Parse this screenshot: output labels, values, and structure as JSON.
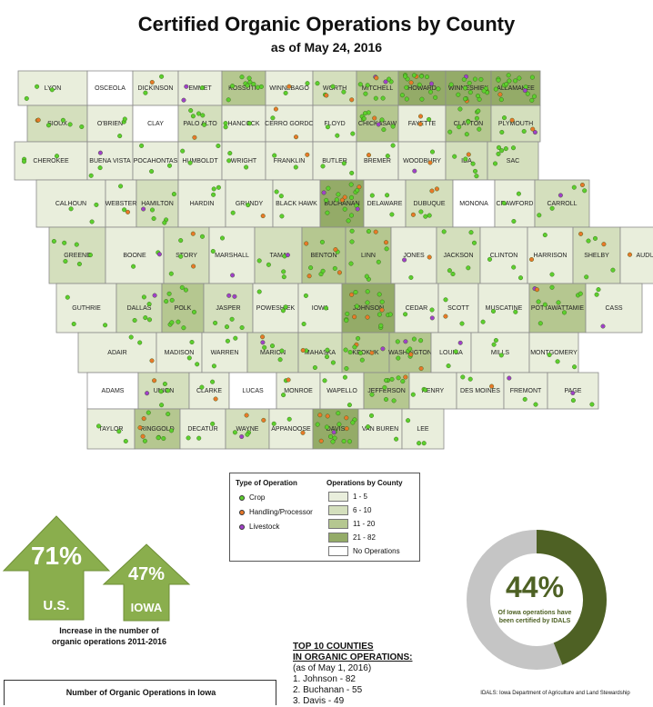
{
  "title": "Certified Organic Operations by County",
  "subtitle": "as of May 24, 2016",
  "colors": {
    "shade_1_5": "#e9eedc",
    "shade_6_10": "#d4dfbd",
    "shade_11_20": "#b5c790",
    "shade_21_82": "#94ab68",
    "no_ops": "#ffffff",
    "crop": "#5dcf2e",
    "handling": "#e8782a",
    "livestock": "#a040c8",
    "arrow": "#8aae4d",
    "donut_dark": "#4e6124",
    "donut_light": "#c5c5c5"
  },
  "counties": [
    {
      "name": "LYON",
      "shade": "1"
    },
    {
      "name": "OSCEOLA",
      "shade": "0"
    },
    {
      "name": "DICKINSON",
      "shade": "1"
    },
    {
      "name": "EMMET",
      "shade": "1"
    },
    {
      "name": "KOSSUTH",
      "shade": "3"
    },
    {
      "name": "WINNEBAGO",
      "shade": "1"
    },
    {
      "name": "WORTH",
      "shade": "2"
    },
    {
      "name": "MITCHELL",
      "shade": "3"
    },
    {
      "name": "HOWARD",
      "shade": "4"
    },
    {
      "name": "WINNESHIEK",
      "shade": "4"
    },
    {
      "name": "ALLAMAKEE",
      "shade": "4"
    },
    {
      "name": "SIOUX",
      "shade": "2"
    },
    {
      "name": "O'BRIEN",
      "shade": "1"
    },
    {
      "name": "CLAY",
      "shade": "0"
    },
    {
      "name": "PALO ALTO",
      "shade": "2"
    },
    {
      "name": "HANCOCK",
      "shade": "1"
    },
    {
      "name": "CERRO GORDO",
      "shade": "1"
    },
    {
      "name": "FLOYD",
      "shade": "1"
    },
    {
      "name": "CHICKASAW",
      "shade": "3"
    },
    {
      "name": "FAYETTE",
      "shade": "1"
    },
    {
      "name": "CLAYTON",
      "shade": "3"
    },
    {
      "name": "PLYMOUTH",
      "shade": "2"
    },
    {
      "name": "CHEROKEE",
      "shade": "1"
    },
    {
      "name": "BUENA VISTA",
      "shade": "1"
    },
    {
      "name": "POCAHONTAS",
      "shade": "1"
    },
    {
      "name": "HUMBOLDT",
      "shade": "1"
    },
    {
      "name": "WRIGHT",
      "shade": "1"
    },
    {
      "name": "FRANKLIN",
      "shade": "1"
    },
    {
      "name": "BUTLER",
      "shade": "1"
    },
    {
      "name": "BREMER",
      "shade": "1"
    },
    {
      "name": "WOODBURY",
      "shade": "1"
    },
    {
      "name": "IDA",
      "shade": "2"
    },
    {
      "name": "SAC",
      "shade": "2"
    },
    {
      "name": "CALHOUN",
      "shade": "1"
    },
    {
      "name": "WEBSTER",
      "shade": "1"
    },
    {
      "name": "HAMILTON",
      "shade": "2"
    },
    {
      "name": "HARDIN",
      "shade": "1"
    },
    {
      "name": "GRUNDY",
      "shade": "1"
    },
    {
      "name": "BLACK HAWK",
      "shade": "1"
    },
    {
      "name": "BUCHANAN",
      "shade": "4"
    },
    {
      "name": "DELAWARE",
      "shade": "1"
    },
    {
      "name": "DUBUQUE",
      "shade": "2"
    },
    {
      "name": "MONONA",
      "shade": "0"
    },
    {
      "name": "CRAWFORD",
      "shade": "1"
    },
    {
      "name": "CARROLL",
      "shade": "2"
    },
    {
      "name": "GREENE",
      "shade": "2"
    },
    {
      "name": "BOONE",
      "shade": "1"
    },
    {
      "name": "STORY",
      "shade": "2"
    },
    {
      "name": "MARSHALL",
      "shade": "1"
    },
    {
      "name": "TAMA",
      "shade": "2"
    },
    {
      "name": "BENTON",
      "shade": "3"
    },
    {
      "name": "LINN",
      "shade": "3"
    },
    {
      "name": "JONES",
      "shade": "1"
    },
    {
      "name": "JACKSON",
      "shade": "2"
    },
    {
      "name": "CLINTON",
      "shade": "1"
    },
    {
      "name": "HARRISON",
      "shade": "1"
    },
    {
      "name": "SHELBY",
      "shade": "2"
    },
    {
      "name": "AUDUBON",
      "shade": "1"
    },
    {
      "name": "GUTHRIE",
      "shade": "1"
    },
    {
      "name": "DALLAS",
      "shade": "2"
    },
    {
      "name": "POLK",
      "shade": "3"
    },
    {
      "name": "JASPER",
      "shade": "2"
    },
    {
      "name": "POWESHIEK",
      "shade": "1"
    },
    {
      "name": "IOWA",
      "shade": "1"
    },
    {
      "name": "JOHNSON",
      "shade": "4"
    },
    {
      "name": "CEDAR",
      "shade": "1"
    },
    {
      "name": "SCOTT",
      "shade": "1"
    },
    {
      "name": "MUSCATINE",
      "shade": "1"
    },
    {
      "name": "POTTAWATTAMIE",
      "shade": "3"
    },
    {
      "name": "CASS",
      "shade": "1"
    },
    {
      "name": "ADAIR",
      "shade": "1"
    },
    {
      "name": "MADISON",
      "shade": "1"
    },
    {
      "name": "WARREN",
      "shade": "1"
    },
    {
      "name": "MARION",
      "shade": "2"
    },
    {
      "name": "MAHASKA",
      "shade": "2"
    },
    {
      "name": "KEOKUK",
      "shade": "3"
    },
    {
      "name": "WASHINGTON",
      "shade": "3"
    },
    {
      "name": "LOUISA",
      "shade": "1"
    },
    {
      "name": "MILLS",
      "shade": "1"
    },
    {
      "name": "MONTGOMERY",
      "shade": "1"
    },
    {
      "name": "ADAMS",
      "shade": "0"
    },
    {
      "name": "UNION",
      "shade": "2"
    },
    {
      "name": "CLARKE",
      "shade": "1"
    },
    {
      "name": "LUCAS",
      "shade": "0"
    },
    {
      "name": "MONROE",
      "shade": "1"
    },
    {
      "name": "WAPELLO",
      "shade": "1"
    },
    {
      "name": "JEFFERSON",
      "shade": "3"
    },
    {
      "name": "HENRY",
      "shade": "1"
    },
    {
      "name": "DES MOINES",
      "shade": "1"
    },
    {
      "name": "FREMONT",
      "shade": "1"
    },
    {
      "name": "PAGE",
      "shade": "1"
    },
    {
      "name": "TAYLOR",
      "shade": "1"
    },
    {
      "name": "RINGGOLD",
      "shade": "3"
    },
    {
      "name": "DECATUR",
      "shade": "1"
    },
    {
      "name": "WAYNE",
      "shade": "2"
    },
    {
      "name": "APPANOOSE",
      "shade": "1"
    },
    {
      "name": "DAVIS",
      "shade": "4"
    },
    {
      "name": "VAN BUREN",
      "shade": "1"
    },
    {
      "name": "LEE",
      "shade": "1"
    }
  ],
  "legend": {
    "type_heading": "Type of Operation",
    "types": [
      "Crop",
      "Handling/Processor",
      "Livestock"
    ],
    "county_heading": "Operations by County",
    "ranges": [
      "1 - 5",
      "6 - 10",
      "11 - 20",
      "21 - 82",
      "No Operations"
    ]
  },
  "arrows": {
    "us_pct": "71%",
    "us_label": "U.S.",
    "iowa_pct": "47%",
    "iowa_label": "IOWA",
    "caption_line1": "Increase in the number of",
    "caption_line2": "organic operations 2011-2016"
  },
  "donut": {
    "percent_value": 44,
    "percent_text": "44%",
    "line1": "Of Iowa operations have",
    "line2": "been certified by IDALS"
  },
  "top10": {
    "heading1": "TOP 10 COUNTIES",
    "heading2": "IN ORGANIC OPERATIONS:",
    "asof": "(as of May 1, 2016)",
    "items": [
      "1. Johnson - 82",
      "2. Buchanan - 55",
      "3. Davis - 49"
    ]
  },
  "idals_note": "IDALS: Iowa Department of Agriculture and Land Stewardship",
  "ops_box_title": "Number of Organic Operations in Iowa"
}
